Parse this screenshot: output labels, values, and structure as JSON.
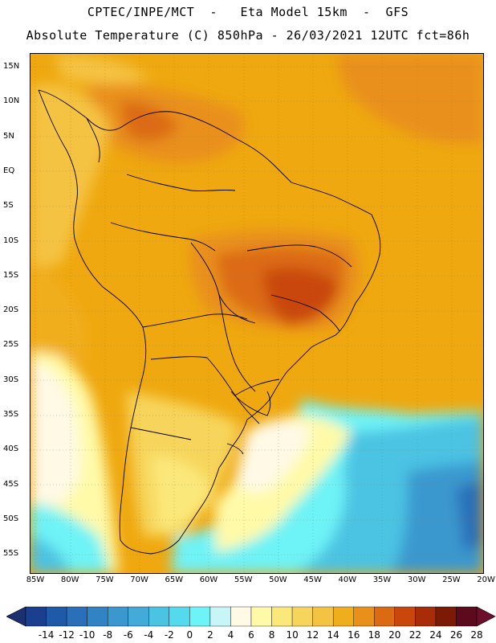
{
  "header": {
    "title_line1": "CPTEC/INPE/MCT  -   Eta Model 15km  -  GFS",
    "title_line2": "Absolute Temperature (C) 850hPa - 26/03/2021 12UTC fct=86h"
  },
  "map": {
    "lat_labels": [
      "15N",
      "10N",
      "5N",
      "EQ",
      "5S",
      "10S",
      "15S",
      "20S",
      "25S",
      "30S",
      "35S",
      "40S",
      "45S",
      "50S",
      "55S"
    ],
    "lon_labels": [
      "85W",
      "80W",
      "75W",
      "70W",
      "65W",
      "60W",
      "55W",
      "50W",
      "45W",
      "40W",
      "35W",
      "30W",
      "25W",
      "20W"
    ]
  },
  "colorbar": {
    "labels": [
      "-14",
      "-12",
      "-10",
      "-8",
      "-6",
      "-4",
      "-2",
      "0",
      "2",
      "4",
      "6",
      "8",
      "10",
      "12",
      "14",
      "16",
      "18",
      "20",
      "22",
      "24",
      "26",
      "28"
    ],
    "colors": [
      "#1a3f8f",
      "#1f5aa8",
      "#2a6fb8",
      "#3283c4",
      "#3b98cf",
      "#42abd9",
      "#4bc3e3",
      "#55d9ec",
      "#6ef3f7",
      "#c8f6f8",
      "#fff9e6",
      "#fffaa8",
      "#fbe87a",
      "#f7d55c",
      "#f5c342",
      "#f1ae1c",
      "#e9901a",
      "#dc6a12",
      "#c9470b",
      "#a82c08",
      "#7d1a06",
      "#5c0b1e"
    ],
    "under_color": "#1c2f6e",
    "over_color": "#6b0f2a"
  }
}
